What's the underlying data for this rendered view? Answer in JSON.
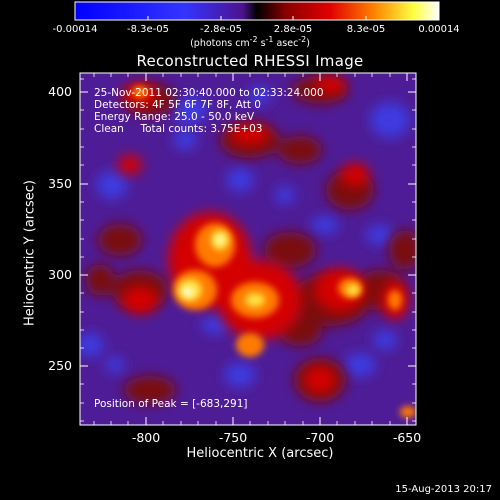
{
  "title": "Reconstructed RHESSI Image",
  "colorbar": {
    "ticks": [
      "-0.00014",
      "-8.3e-05",
      "-2.8e-05",
      "2.8e-05",
      "8.3e-05",
      "0.00014"
    ],
    "unit_html": "(photons cm<sup>-2</sup> s<sup>-1</sup> asec<sup>-2</sup>)",
    "min": -0.00014,
    "max": 0.00014
  },
  "annotations": {
    "time_range": "25-Nov-2011 02:30:40.000 to 02:33:24.000",
    "detectors": "Detectors: 4F 5F 6F 7F 8F, Att 0",
    "energy_range": "Energy Range: 25.0 - 50.0 keV",
    "method": "Clean     Total counts: 3.75E+03",
    "peak_position": "Position of Peak = [-683,291]"
  },
  "axes": {
    "x_label": "Heliocentric X (arcsec)",
    "y_label": "Heliocentric Y (arcsec)",
    "x_ticks": [
      "-800",
      "-750",
      "-700",
      "-650"
    ],
    "y_ticks": [
      "400",
      "350",
      "300",
      "250"
    ],
    "x_range": [
      -838,
      -643
    ],
    "y_range": [
      215,
      411
    ]
  },
  "footer_date": "15-Aug-2013 20:17"
}
